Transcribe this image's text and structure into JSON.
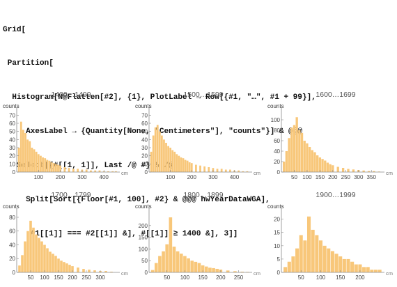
{
  "code": {
    "lines": [
      "Grid[",
      " Partition[",
      "  Histogram[N@Flatten[#2], {1}, PlotLabel → Row[{#1, \"…\", #1 + 99}],",
      "     AxesLabel → {Quantity[None, \"Centimeters\"], \"counts\"}] & @@@",
      "   Select[{#[[1, 1]], Last /@ #} & /@",
      "     Split[Sort[{Floor[#1, 100], #2} & @@@ hwYearDataWGA],",
      "      #1[[1]] === #2[[1]] &], #[[1]] ≥ 1400 &], 3]]"
    ]
  },
  "colors": {
    "bar": "#f8c77a",
    "axis": "#888888",
    "text": "#333333"
  },
  "chart_data": [
    {
      "type": "bar",
      "title": "1400…1499",
      "xlabel": "cm",
      "ylabel": "counts",
      "xlim": [
        0,
        460
      ],
      "ylim": [
        0,
        72
      ],
      "xticks": [
        100,
        200,
        300,
        400
      ],
      "yticks": [
        0,
        10,
        20,
        30,
        40,
        50,
        60,
        70
      ],
      "xtick_labels": [
        "100",
        "200",
        "300",
        "400"
      ],
      "ytick_labels": [
        "0",
        "10",
        "20",
        "30",
        "40",
        "50",
        "60",
        "70"
      ],
      "x": [
        10,
        20,
        30,
        40,
        50,
        60,
        70,
        80,
        90,
        100,
        110,
        120,
        130,
        140,
        150,
        160,
        170,
        180,
        190,
        200,
        220,
        240,
        260,
        280,
        300,
        320,
        340,
        360,
        380,
        400,
        420,
        440,
        455
      ],
      "values": [
        30,
        62,
        52,
        48,
        40,
        38,
        30,
        28,
        25,
        22,
        20,
        18,
        17,
        15,
        14,
        12,
        11,
        10,
        9,
        8,
        6,
        5,
        4,
        4,
        3,
        3,
        2,
        2,
        2,
        1,
        1,
        1,
        1
      ]
    },
    {
      "type": "bar",
      "title": "1500…1599",
      "xlabel": "cm",
      "ylabel": "counts",
      "xlim": [
        0,
        470
      ],
      "ylim": [
        0,
        72
      ],
      "xticks": [
        100,
        200,
        300,
        400
      ],
      "yticks": [
        0,
        10,
        20,
        30,
        40,
        50,
        60,
        70
      ],
      "xtick_labels": [
        "100",
        "200",
        "300",
        "400"
      ],
      "ytick_labels": [
        "0",
        "10",
        "20",
        "30",
        "40",
        "50",
        "60",
        "70"
      ],
      "x": [
        10,
        20,
        30,
        40,
        50,
        60,
        70,
        80,
        90,
        100,
        110,
        120,
        130,
        140,
        150,
        160,
        170,
        180,
        190,
        200,
        220,
        240,
        260,
        280,
        300,
        320,
        340,
        360,
        380,
        400,
        420,
        440,
        460
      ],
      "values": [
        25,
        45,
        55,
        58,
        50,
        45,
        40,
        36,
        32,
        30,
        27,
        25,
        22,
        20,
        18,
        17,
        15,
        14,
        12,
        11,
        9,
        8,
        7,
        6,
        5,
        4,
        4,
        3,
        3,
        2,
        2,
        1,
        1
      ]
    },
    {
      "type": "bar",
      "title": "1600…1699",
      "xlabel": "cm",
      "ylabel": "counts",
      "xlim": [
        0,
        390
      ],
      "ylim": [
        0,
        112
      ],
      "xticks": [
        50,
        100,
        150,
        200,
        250,
        300,
        350
      ],
      "yticks": [
        0,
        20,
        40,
        60,
        80,
        100
      ],
      "xtick_labels": [
        "50",
        "100",
        "150",
        "200",
        "250",
        "300",
        "350"
      ],
      "ytick_labels": [
        "0",
        "20",
        "40",
        "60",
        "80",
        "100"
      ],
      "x": [
        10,
        20,
        30,
        40,
        50,
        60,
        70,
        80,
        90,
        100,
        110,
        120,
        130,
        140,
        150,
        160,
        170,
        180,
        190,
        200,
        220,
        240,
        260,
        280,
        300,
        320,
        340,
        360,
        380
      ],
      "values": [
        20,
        40,
        65,
        85,
        90,
        105,
        80,
        75,
        60,
        55,
        48,
        42,
        38,
        32,
        28,
        25,
        22,
        18,
        15,
        13,
        10,
        8,
        6,
        5,
        4,
        3,
        2,
        2,
        1
      ]
    },
    {
      "type": "bar",
      "title": "1700…1799",
      "xlabel": "cm",
      "ylabel": "counts",
      "xlim": [
        0,
        360
      ],
      "ylim": [
        0,
        85
      ],
      "xticks": [
        50,
        100,
        150,
        200,
        250,
        300
      ],
      "yticks": [
        0,
        20,
        40,
        60,
        80
      ],
      "xtick_labels": [
        "50",
        "100",
        "150",
        "200",
        "250",
        "300"
      ],
      "ytick_labels": [
        "0",
        "20",
        "40",
        "60",
        "80"
      ],
      "x": [
        10,
        20,
        30,
        40,
        50,
        60,
        70,
        80,
        90,
        100,
        110,
        120,
        130,
        140,
        150,
        160,
        170,
        180,
        190,
        200,
        220,
        240,
        260,
        280,
        300,
        320,
        340
      ],
      "values": [
        10,
        25,
        45,
        60,
        75,
        65,
        55,
        50,
        45,
        40,
        35,
        30,
        27,
        24,
        20,
        17,
        15,
        13,
        11,
        9,
        7,
        5,
        4,
        3,
        2,
        2,
        1
      ]
    },
    {
      "type": "bar",
      "title": "1800…1899",
      "xlabel": "cm",
      "ylabel": "counts",
      "xlim": [
        0,
        280
      ],
      "ylim": [
        0,
        250
      ],
      "xticks": [
        50,
        100,
        150,
        200,
        250
      ],
      "yticks": [
        0,
        50,
        100,
        150,
        200
      ],
      "xtick_labels": [
        "50",
        "100",
        "150",
        "200",
        "250"
      ],
      "ytick_labels": [
        "0",
        "50",
        "100",
        "150",
        "200"
      ],
      "x": [
        10,
        20,
        30,
        40,
        50,
        60,
        70,
        80,
        90,
        100,
        110,
        120,
        130,
        140,
        150,
        160,
        170,
        180,
        190,
        200,
        220,
        240,
        260,
        275
      ],
      "values": [
        10,
        40,
        70,
        90,
        120,
        235,
        110,
        90,
        80,
        70,
        60,
        50,
        45,
        40,
        30,
        25,
        20,
        18,
        15,
        12,
        8,
        5,
        3,
        2
      ]
    },
    {
      "type": "bar",
      "title": "1900…1999",
      "xlabel": "cm",
      "ylabel": "counts",
      "xlim": [
        0,
        255
      ],
      "ylim": [
        0,
        22
      ],
      "xticks": [
        50,
        100,
        150,
        200
      ],
      "yticks": [
        0,
        5,
        10,
        15,
        20
      ],
      "xtick_labels": [
        "50",
        "100",
        "150",
        "200"
      ],
      "ytick_labels": [
        "0",
        "5",
        "10",
        "15",
        "20"
      ],
      "x": [
        10,
        20,
        30,
        40,
        50,
        60,
        70,
        80,
        90,
        100,
        110,
        120,
        130,
        140,
        150,
        160,
        170,
        180,
        190,
        200,
        210,
        220,
        230,
        240,
        250
      ],
      "values": [
        2,
        4,
        6,
        9,
        14,
        12,
        21,
        16,
        14,
        12,
        10,
        9,
        8,
        7,
        6,
        5,
        5,
        4,
        3,
        3,
        2,
        2,
        1,
        1,
        1
      ]
    }
  ]
}
